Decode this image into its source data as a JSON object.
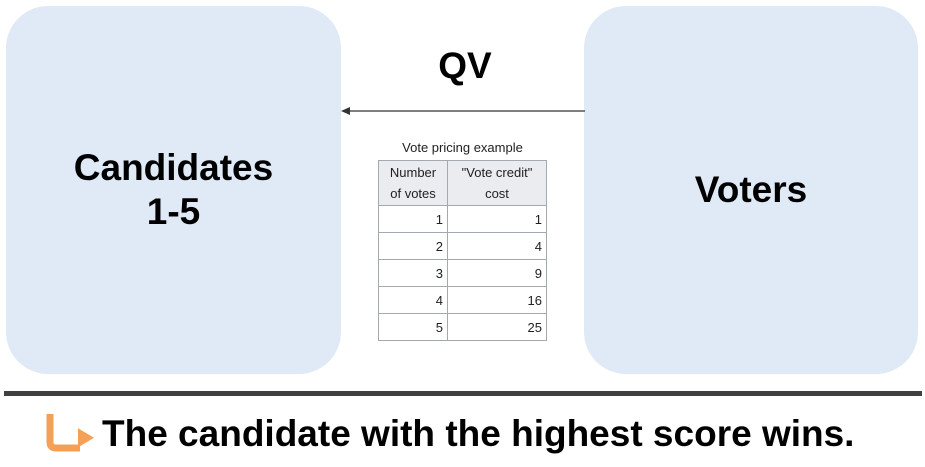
{
  "candidates": {
    "line1": "Candidates",
    "line2": "1-5"
  },
  "voters": {
    "label": "Voters"
  },
  "arrow": {
    "label": "QV"
  },
  "pricing_table": {
    "caption": "Vote pricing example",
    "headers": {
      "votes": [
        "Number",
        "of votes"
      ],
      "cost": [
        "\"Vote credit\"",
        "cost"
      ]
    },
    "rows": [
      {
        "votes": "1",
        "cost": "1"
      },
      {
        "votes": "2",
        "cost": "4"
      },
      {
        "votes": "3",
        "cost": "9"
      },
      {
        "votes": "4",
        "cost": "16"
      },
      {
        "votes": "5",
        "cost": "25"
      }
    ]
  },
  "footer": {
    "icon": "turn-right-arrow-icon",
    "text": "The candidate with the highest score wins."
  },
  "colors": {
    "box_fill": "#dfeaf6",
    "footer_arrow": "#f5a057",
    "divider": "#404040"
  }
}
